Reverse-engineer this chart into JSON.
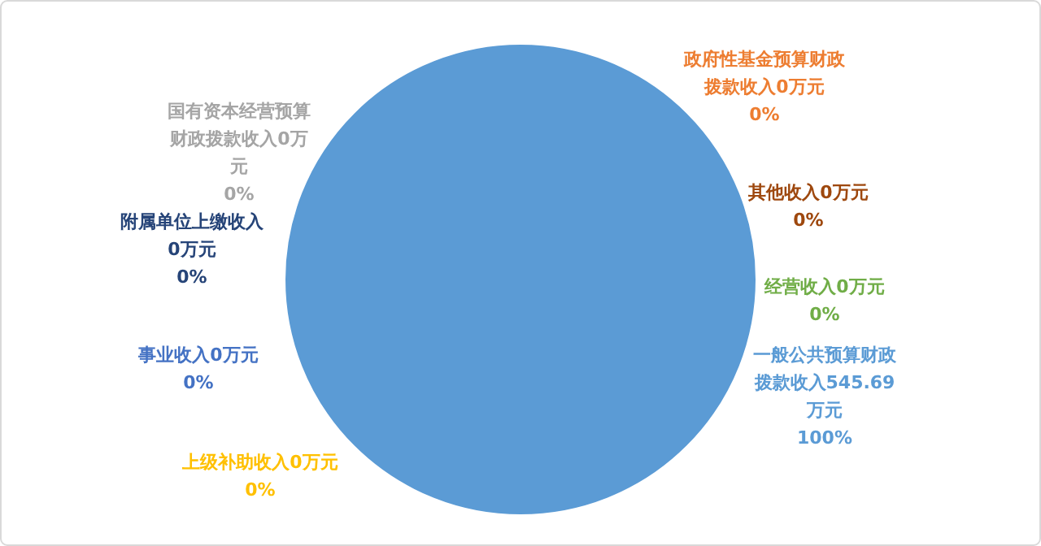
{
  "chart_data": {
    "type": "pie",
    "categories": [
      "政府性基金预算财政拨款收入0万元",
      "其他收入0万元",
      "经营收入0万元",
      "一般公共预算财政拨款收入545.69万元",
      "上级补助收入0万元",
      "事业收入0万元",
      "附属单位上缴收入0万元",
      "国有资本经营预算财政拨款收入0万元"
    ],
    "values": [
      0,
      0,
      0,
      100,
      0,
      0,
      0,
      0
    ],
    "colors": [
      "#ed7d31",
      "#9e480e",
      "#70ad47",
      "#5b9bd5",
      "#ffc000",
      "#4472c4",
      "#264478",
      "#a5a5a5"
    ],
    "value_labels": [
      "0%",
      "0%",
      "0%",
      "100%",
      "0%",
      "0%",
      "0%",
      "0%"
    ]
  }
}
